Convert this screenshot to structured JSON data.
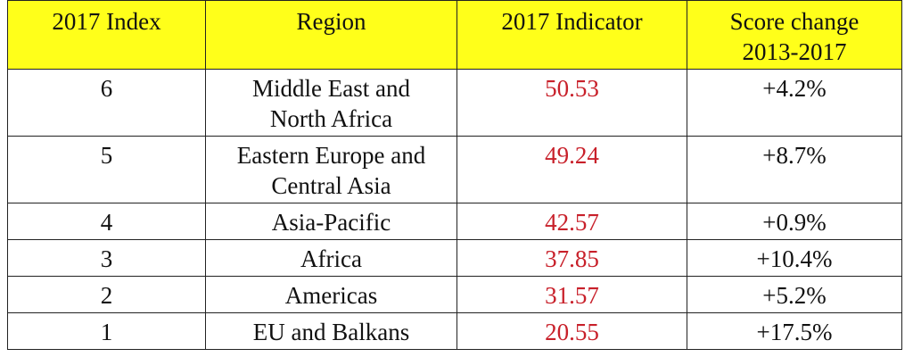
{
  "table": {
    "header": [
      "2017 Index",
      "Region",
      "2017 Indicator",
      "Score change 2013-2017"
    ],
    "rows": [
      [
        "6",
        "Middle East and North Africa",
        "50.53",
        "+4.2%"
      ],
      [
        "5",
        "Eastern Europe and Central Asia",
        "49.24",
        "+8.7%"
      ],
      [
        "4",
        "Asia-Pacific",
        "42.57",
        "+0.9%"
      ],
      [
        "3",
        "Africa",
        "37.85",
        "+10.4%"
      ],
      [
        "2",
        "Americas",
        "31.57",
        "+5.2%"
      ],
      [
        "1",
        "EU and Balkans",
        "20.55",
        "+17.5%"
      ]
    ]
  }
}
